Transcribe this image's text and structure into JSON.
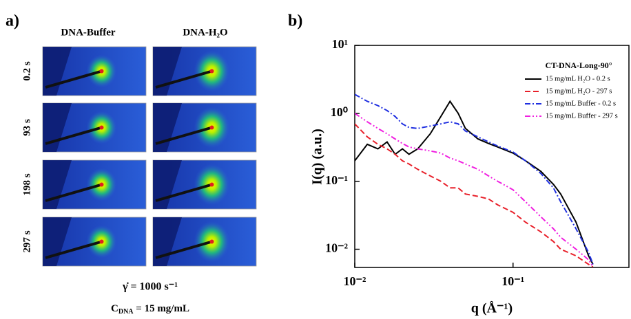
{
  "panel_a": {
    "label": "a)",
    "columns": [
      "DNA-Buffer",
      "DNA-H₂O"
    ],
    "rows": [
      "0.2 s",
      "93 s",
      "198 s",
      "297 s"
    ],
    "shear_rate": "γ̇ = 1000 s⁻¹",
    "concentration": {
      "symbol": "C",
      "subscript": "DNA",
      "text": " = 15 mg/mL"
    }
  },
  "chart_data": {
    "type": "line",
    "panel_label": "b)",
    "xlabel": "q (Å⁻¹)",
    "ylabel": "I(q) (a.u.)",
    "log_x": true,
    "log_y": true,
    "xlim": [
      0.01,
      0.54
    ],
    "ylim": [
      0.0054,
      10
    ],
    "xticks": [
      {
        "value": 0.01,
        "label": "10⁻²"
      },
      {
        "value": 0.1,
        "label": "10⁻¹"
      }
    ],
    "yticks": [
      {
        "value": 0.01,
        "label": "10⁻²"
      },
      {
        "value": 0.1,
        "label": "10⁻¹"
      },
      {
        "value": 1,
        "label": "10⁰"
      },
      {
        "value": 10,
        "label": "10¹"
      }
    ],
    "legend_title": "CT-DNA-Long-90°",
    "legend_position": "upper right",
    "x": [
      0.01,
      0.012,
      0.014,
      0.016,
      0.018,
      0.02,
      0.022,
      0.025,
      0.03,
      0.035,
      0.04,
      0.045,
      0.05,
      0.06,
      0.07,
      0.08,
      0.1,
      0.12,
      0.15,
      0.18,
      0.2,
      0.25,
      0.3,
      0.32
    ],
    "series": [
      {
        "name": "15 mg/mL H₂O - 0.2 s",
        "color": "#000000",
        "dash": "solid",
        "values": [
          0.2,
          0.35,
          0.3,
          0.38,
          0.25,
          0.3,
          0.25,
          0.3,
          0.5,
          0.9,
          1.5,
          1.0,
          0.6,
          0.42,
          0.36,
          0.32,
          0.26,
          0.2,
          0.14,
          0.09,
          0.065,
          0.025,
          0.008,
          0.006
        ]
      },
      {
        "name": "15 mg/mL H₂O - 297 s",
        "color": "#e8202a",
        "dash": "dash",
        "values": [
          0.7,
          0.45,
          0.35,
          0.3,
          0.25,
          0.2,
          0.18,
          0.15,
          0.12,
          0.1,
          0.08,
          0.08,
          0.065,
          0.06,
          0.055,
          0.045,
          0.035,
          0.025,
          0.018,
          0.013,
          0.01,
          0.008,
          0.006,
          0.0055
        ]
      },
      {
        "name": "15 mg/mL Buffer - 0.2 s",
        "color": "#1f2fe0",
        "dash": "dashdot",
        "values": [
          1.9,
          1.5,
          1.3,
          1.1,
          0.9,
          0.7,
          0.62,
          0.6,
          0.65,
          0.7,
          0.75,
          0.7,
          0.55,
          0.45,
          0.38,
          0.33,
          0.27,
          0.2,
          0.13,
          0.08,
          0.05,
          0.02,
          0.009,
          0.006
        ]
      },
      {
        "name": "15 mg/mL Buffer - 297 s",
        "color": "#f020e0",
        "dash": "dashdotdot",
        "values": [
          1.0,
          0.75,
          0.6,
          0.5,
          0.42,
          0.36,
          0.32,
          0.3,
          0.28,
          0.26,
          0.22,
          0.2,
          0.18,
          0.15,
          0.12,
          0.1,
          0.075,
          0.05,
          0.03,
          0.02,
          0.015,
          0.01,
          0.007,
          0.0055
        ]
      }
    ]
  }
}
